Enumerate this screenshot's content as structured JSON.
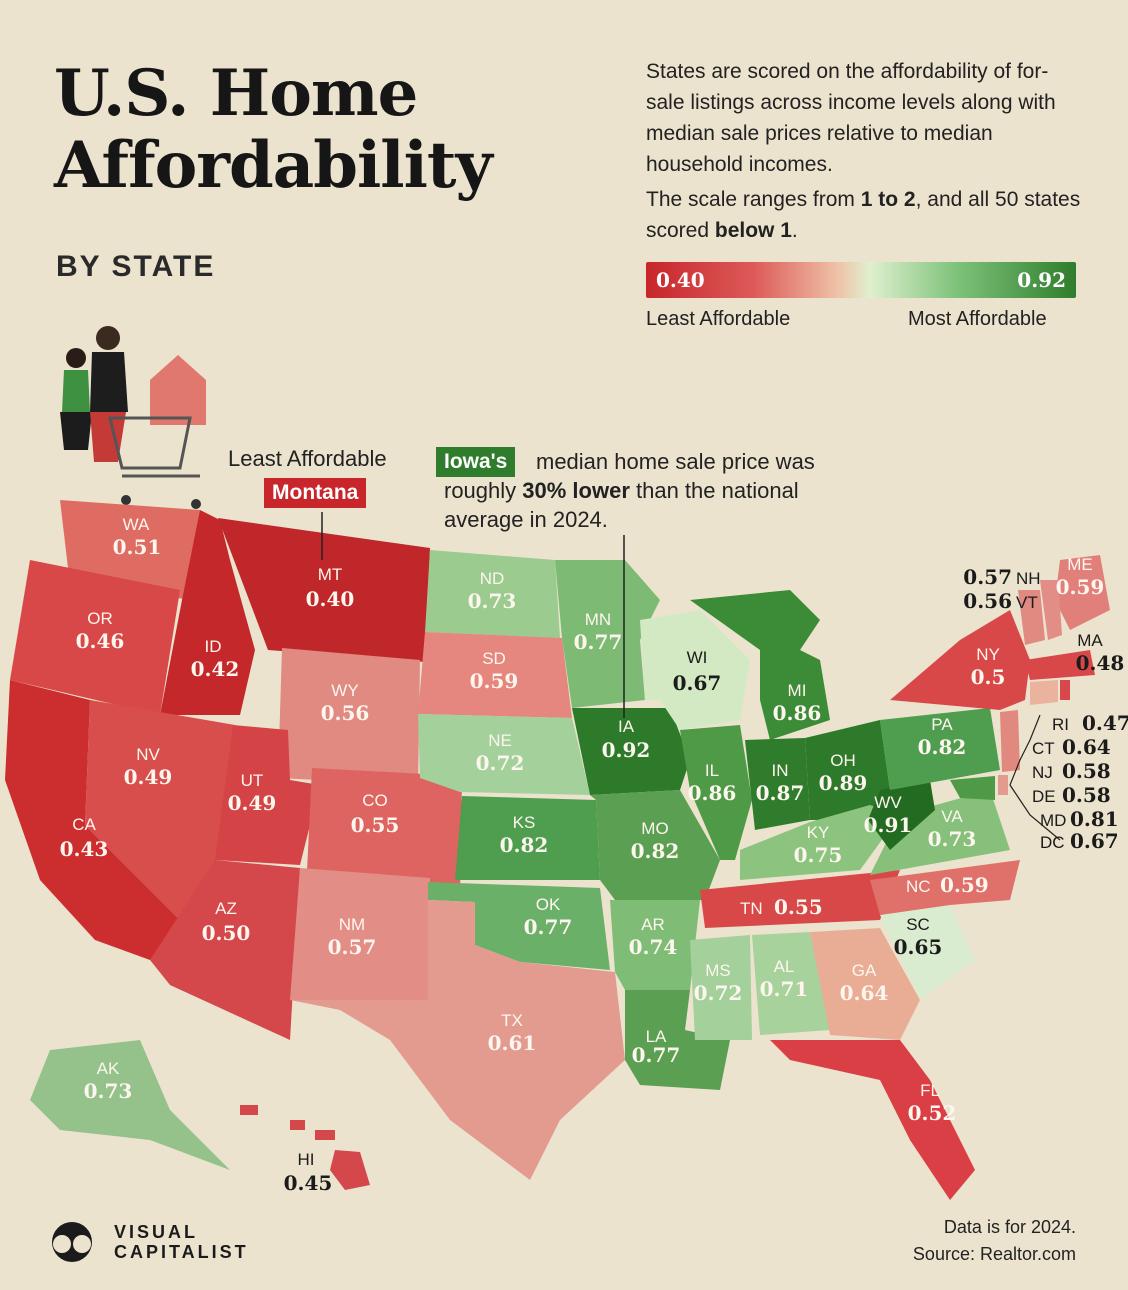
{
  "title_line1": "U.S. Home",
  "title_line2": "Affordability",
  "subtitle": "BY STATE",
  "description": "States are scored on the affordability of for-sale listings across income levels along with median sale prices relative to median household incomes.",
  "scale_note_prefix": "The scale ranges from ",
  "scale_note_range": "1 to 2",
  "scale_note_mid": ", and all 50 states scored ",
  "scale_note_below": "below 1",
  "scale_note_end": ".",
  "legend": {
    "min_value": "0.40",
    "max_value": "0.92",
    "min_label": "Least Affordable",
    "max_label": "Most Affordable",
    "colors": [
      "#c8262b",
      "#efc4a8",
      "#dff0cf",
      "#2f7d2c"
    ]
  },
  "callouts": {
    "least_label": "Least Affordable",
    "least_state": "Montana",
    "iowa_badge": "Iowa's",
    "iowa_text_1": " median home sale price was roughly ",
    "iowa_text_bold": "30% lower",
    "iowa_text_2": " than the national average in 2024."
  },
  "states": [
    {
      "abbr": "WA",
      "value": "0.51"
    },
    {
      "abbr": "OR",
      "value": "0.46"
    },
    {
      "abbr": "CA",
      "value": "0.43"
    },
    {
      "abbr": "ID",
      "value": "0.42"
    },
    {
      "abbr": "NV",
      "value": "0.49"
    },
    {
      "abbr": "MT",
      "value": "0.40"
    },
    {
      "abbr": "WY",
      "value": "0.56"
    },
    {
      "abbr": "UT",
      "value": "0.49"
    },
    {
      "abbr": "AZ",
      "value": "0.50"
    },
    {
      "abbr": "CO",
      "value": "0.55"
    },
    {
      "abbr": "NM",
      "value": "0.57"
    },
    {
      "abbr": "ND",
      "value": "0.73"
    },
    {
      "abbr": "SD",
      "value": "0.59"
    },
    {
      "abbr": "NE",
      "value": "0.72"
    },
    {
      "abbr": "KS",
      "value": "0.82"
    },
    {
      "abbr": "OK",
      "value": "0.77"
    },
    {
      "abbr": "TX",
      "value": "0.61"
    },
    {
      "abbr": "MN",
      "value": "0.77"
    },
    {
      "abbr": "IA",
      "value": "0.92"
    },
    {
      "abbr": "MO",
      "value": "0.82"
    },
    {
      "abbr": "AR",
      "value": "0.74"
    },
    {
      "abbr": "LA",
      "value": "0.77"
    },
    {
      "abbr": "WI",
      "value": "0.67"
    },
    {
      "abbr": "IL",
      "value": "0.86"
    },
    {
      "abbr": "MI",
      "value": "0.86"
    },
    {
      "abbr": "IN",
      "value": "0.87"
    },
    {
      "abbr": "OH",
      "value": "0.89"
    },
    {
      "abbr": "KY",
      "value": "0.75"
    },
    {
      "abbr": "TN",
      "value": "0.55"
    },
    {
      "abbr": "MS",
      "value": "0.72"
    },
    {
      "abbr": "AL",
      "value": "0.71"
    },
    {
      "abbr": "GA",
      "value": "0.64"
    },
    {
      "abbr": "FL",
      "value": "0.52"
    },
    {
      "abbr": "SC",
      "value": "0.65"
    },
    {
      "abbr": "NC",
      "value": "0.59"
    },
    {
      "abbr": "VA",
      "value": "0.73"
    },
    {
      "abbr": "WV",
      "value": "0.91"
    },
    {
      "abbr": "PA",
      "value": "0.82"
    },
    {
      "abbr": "NY",
      "value": "0.5"
    },
    {
      "abbr": "ME",
      "value": "0.59"
    },
    {
      "abbr": "NH",
      "value": "0.57"
    },
    {
      "abbr": "VT",
      "value": "0.56"
    },
    {
      "abbr": "MA",
      "value": "0.48"
    },
    {
      "abbr": "RI",
      "value": "0.47"
    },
    {
      "abbr": "CT",
      "value": "0.64"
    },
    {
      "abbr": "NJ",
      "value": "0.58"
    },
    {
      "abbr": "DE",
      "value": "0.58"
    },
    {
      "abbr": "MD",
      "value": "0.81"
    },
    {
      "abbr": "DC",
      "value": "0.67"
    },
    {
      "abbr": "AK",
      "value": "0.73"
    },
    {
      "abbr": "HI",
      "value": "0.45"
    }
  ],
  "footer_year": "Data is for 2024.",
  "footer_source": "Source: Realtor.com",
  "logo_line1": "VISUAL",
  "logo_line2": "CAPITALIST"
}
